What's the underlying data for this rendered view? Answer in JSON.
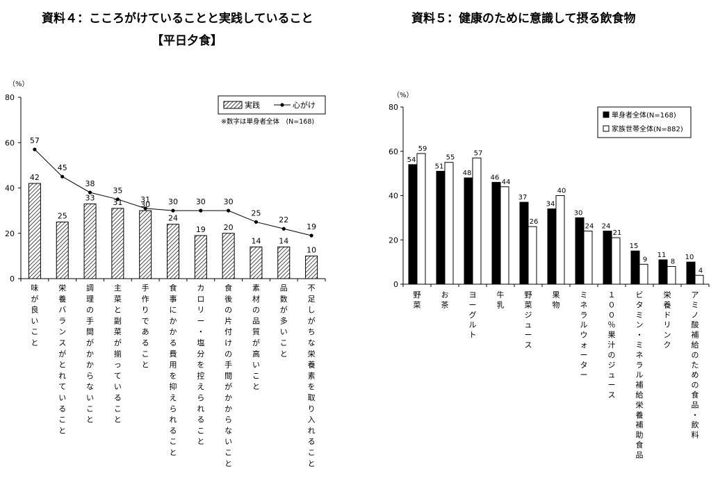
{
  "chart_data": [
    {
      "type": "bar",
      "title": "資料４：こころがけていることと実践していること",
      "subtitle": "【平日夕食】",
      "ylabel": "（%）",
      "ylim": [
        0,
        80
      ],
      "yticks": [
        0,
        20,
        40,
        60,
        80
      ],
      "note": "※数字は単身者全体　(N=168)",
      "legend_position": "top-right",
      "categories": [
        "味が良いこと",
        "栄養バランスがとれていること",
        "調理の手間がかからないこと",
        "主菜と副菜が揃っていること",
        "手作りであること",
        "食事にかかる費用を抑えられること",
        "カロリー・塩分を控えられること",
        "食後の片付けの手間がかからないこと",
        "素材の品質が高いこと",
        "品数が多いこと",
        "不足しがちな栄養素を取り入れること"
      ],
      "series": [
        {
          "name": "実践",
          "kind": "bar",
          "values": [
            42,
            25,
            33,
            31,
            30,
            24,
            19,
            20,
            14,
            14,
            10
          ]
        },
        {
          "name": "心がけ",
          "kind": "line",
          "values": [
            57,
            45,
            38,
            35,
            31,
            30,
            30,
            30,
            25,
            22,
            19
          ]
        }
      ]
    },
    {
      "type": "bar",
      "title": "資料５：健康のために意識して摂る飲食物",
      "ylabel": "（%）",
      "ylim": [
        0,
        80
      ],
      "yticks": [
        0,
        20,
        40,
        60,
        80
      ],
      "legend_position": "top-right",
      "categories": [
        "野菜",
        "お茶",
        "ヨーグルト",
        "牛乳",
        "野菜ジュース",
        "果物",
        "ミネラルウォーター",
        "１００％果汁のジュース",
        "ビタミン・ミネラル補給栄養補助食品",
        "栄養ドリンク",
        "アミノ酸補給のための食品・飲料"
      ],
      "series": [
        {
          "name": "単身者全体(N=168)",
          "values": [
            54,
            51,
            48,
            46,
            37,
            34,
            30,
            24,
            15,
            11,
            10
          ]
        },
        {
          "name": "家族世帯全体(N=882)",
          "values": [
            59,
            55,
            57,
            44,
            26,
            40,
            24,
            21,
            9,
            8,
            4
          ]
        }
      ]
    }
  ]
}
